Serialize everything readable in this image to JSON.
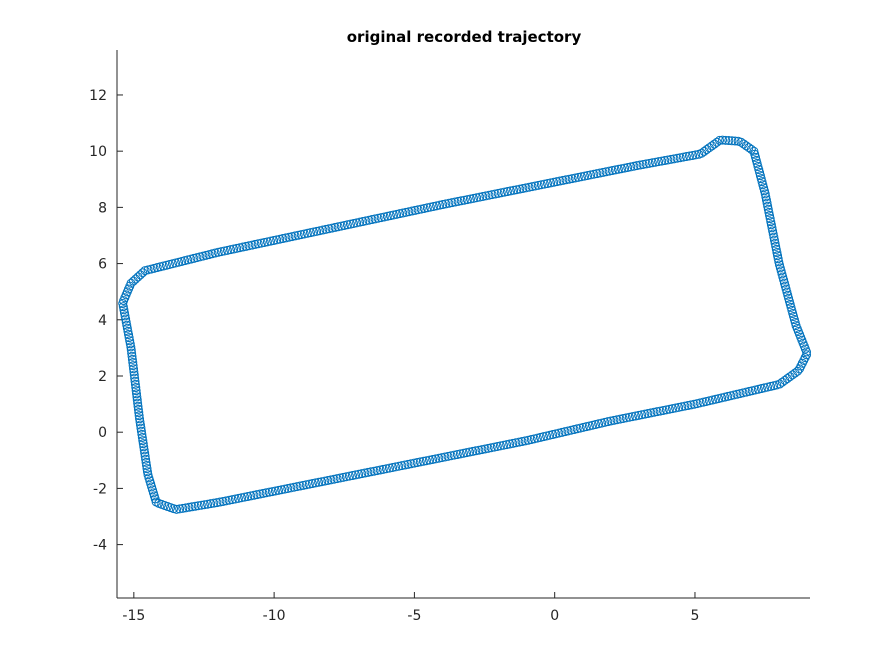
{
  "chart_data": {
    "type": "scatter",
    "title": "original recorded trajectory",
    "xlabel": "",
    "ylabel": "",
    "xlim": [
      -15.6,
      9.1
    ],
    "ylim": [
      -5.9,
      13.6
    ],
    "xticks": [
      -15,
      -10,
      -5,
      0,
      5
    ],
    "yticks": [
      -4,
      -2,
      0,
      2,
      4,
      6,
      8,
      10,
      12
    ],
    "grid": false,
    "marker": "circle-open",
    "marker_color": "#0072bd",
    "axis_color": "#262626",
    "path_vertices": [
      [
        -15.1,
        5.3
      ],
      [
        -14.6,
        5.75
      ],
      [
        -12.0,
        6.4
      ],
      [
        -8.0,
        7.25
      ],
      [
        -4.0,
        8.1
      ],
      [
        0.0,
        8.9
      ],
      [
        3.0,
        9.5
      ],
      [
        5.2,
        9.9
      ],
      [
        5.9,
        10.4
      ],
      [
        6.6,
        10.35
      ],
      [
        7.1,
        10.0
      ],
      [
        7.5,
        8.5
      ],
      [
        8.0,
        6.0
      ],
      [
        8.6,
        3.8
      ],
      [
        9.0,
        2.8
      ],
      [
        8.7,
        2.2
      ],
      [
        8.0,
        1.7
      ],
      [
        5.0,
        1.0
      ],
      [
        2.0,
        0.4
      ],
      [
        -1.0,
        -0.3
      ],
      [
        -5.0,
        -1.1
      ],
      [
        -9.0,
        -1.9
      ],
      [
        -12.0,
        -2.5
      ],
      [
        -13.5,
        -2.75
      ],
      [
        -14.2,
        -2.5
      ],
      [
        -14.5,
        -1.5
      ],
      [
        -14.8,
        0.5
      ],
      [
        -15.1,
        3.0
      ],
      [
        -15.4,
        4.6
      ],
      [
        -15.1,
        5.3
      ]
    ],
    "num_points": 560
  }
}
